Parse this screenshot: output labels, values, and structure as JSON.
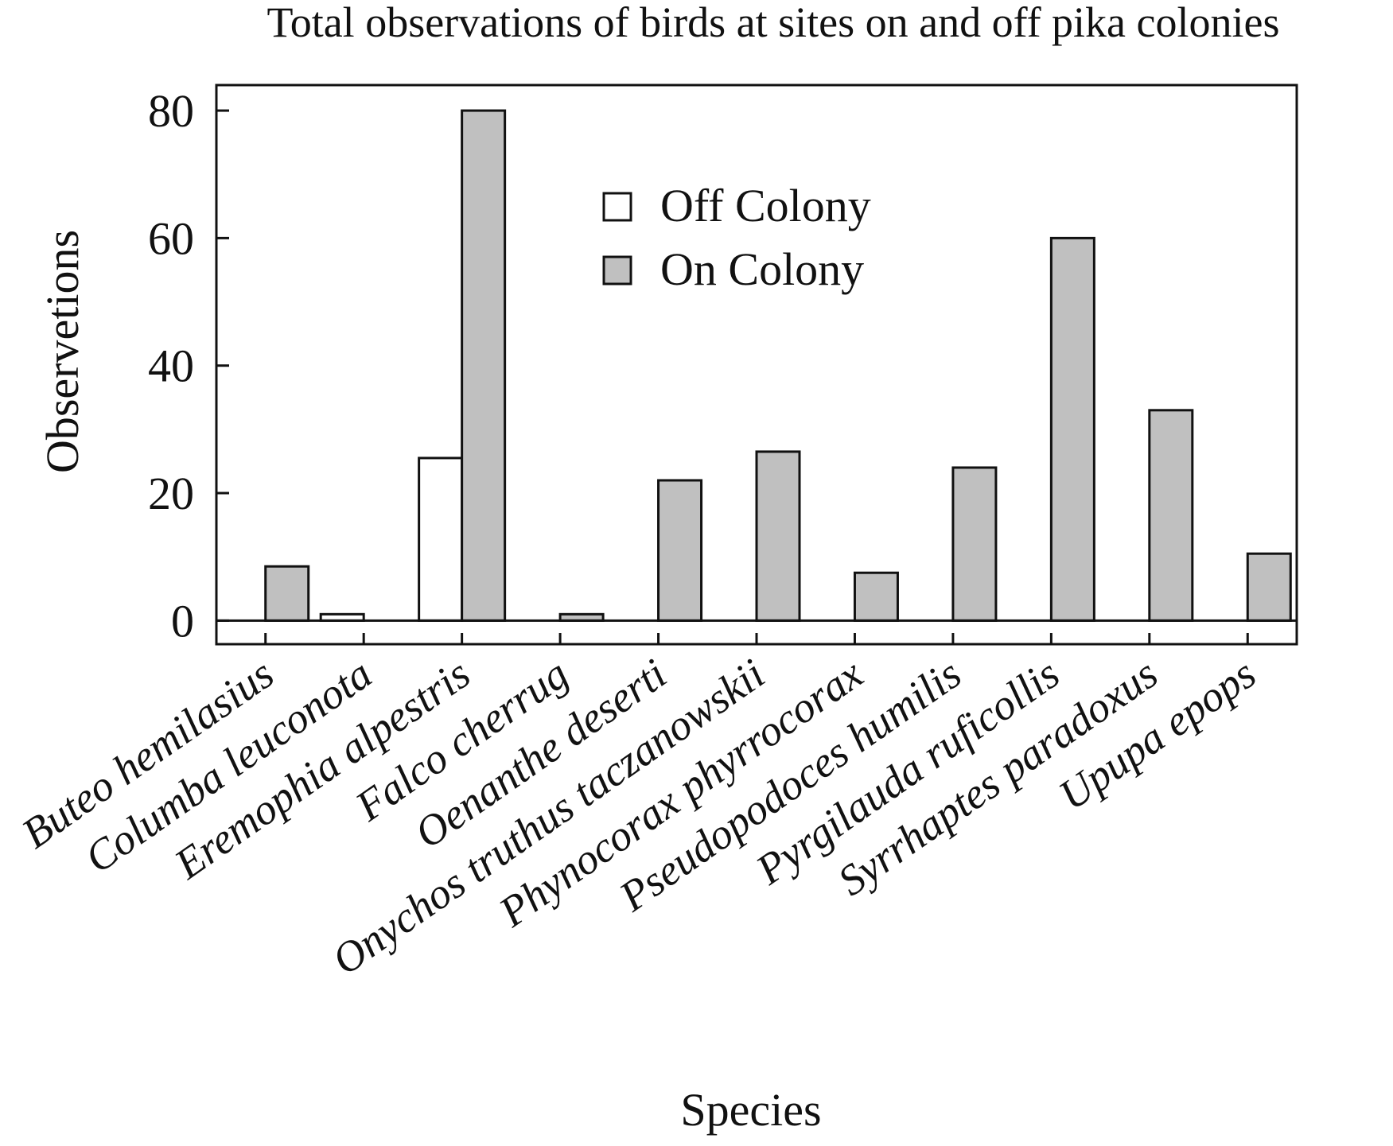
{
  "chart_data": {
    "type": "bar",
    "title": "Total observations of birds at sites on and off pika colonies",
    "xlabel": "Species",
    "ylabel": "Observetions",
    "categories": [
      "Buteo hemilasius",
      "Columba leuconota",
      "Eremophia alpestris",
      "Falco cherrug",
      "Oenanthe deserti",
      "Onychos truthus taczanowskii",
      "Phynocorax phyrrocorax",
      "Pseudopodoces humilis",
      "Pyrgilauda ruficollis",
      "Syrrhaptes paradoxus",
      "Upupa epops"
    ],
    "series": [
      {
        "name": "Off Colony",
        "color": "#ffffff",
        "values": [
          0,
          1,
          25.5,
          0,
          0,
          0,
          0,
          0,
          0,
          0,
          0
        ]
      },
      {
        "name": "On Colony",
        "color": "#c0c0c0",
        "values": [
          8.5,
          0,
          80,
          1,
          22,
          26.5,
          7.5,
          24,
          60,
          33,
          10.5
        ]
      }
    ],
    "yticks": [
      "0",
      "20",
      "40",
      "60",
      "80"
    ],
    "ytick_values": [
      0,
      20,
      40,
      60,
      80
    ],
    "ylim": [
      -3.7,
      84
    ],
    "grid": false,
    "legend": "top-center"
  }
}
